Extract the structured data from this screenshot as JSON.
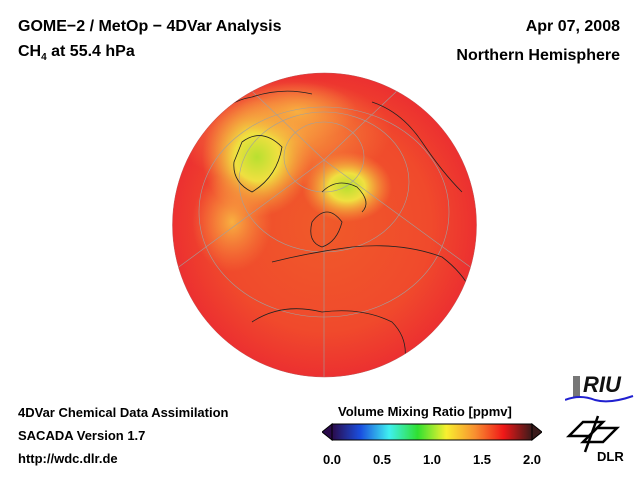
{
  "header": {
    "title": "GOME−2 / MetOp − 4DVar Analysis",
    "species": "CH",
    "species_sub": "4",
    "species_rest": " at 55.4 hPa",
    "date": "Apr 07, 2008",
    "region": "Northern Hemisphere"
  },
  "footer": {
    "line1": "4DVar Chemical Data Assimilation",
    "line2": "SACADA Version 1.7",
    "line3": "http://wdc.dlr.de"
  },
  "colorbar": {
    "title": "Volume Mixing Ratio [ppmv]",
    "ticks": [
      "0.0",
      "0.5",
      "1.0",
      "1.5",
      "2.0"
    ],
    "min": 0.0,
    "max": 2.0,
    "colors": [
      "#2a0a4a",
      "#1a4fe0",
      "#3ff0f0",
      "#30e030",
      "#f8f030",
      "#f89030",
      "#f01818",
      "#3a1a1a"
    ]
  },
  "logos": {
    "riu": "RIU",
    "dlr": "DLR"
  }
}
